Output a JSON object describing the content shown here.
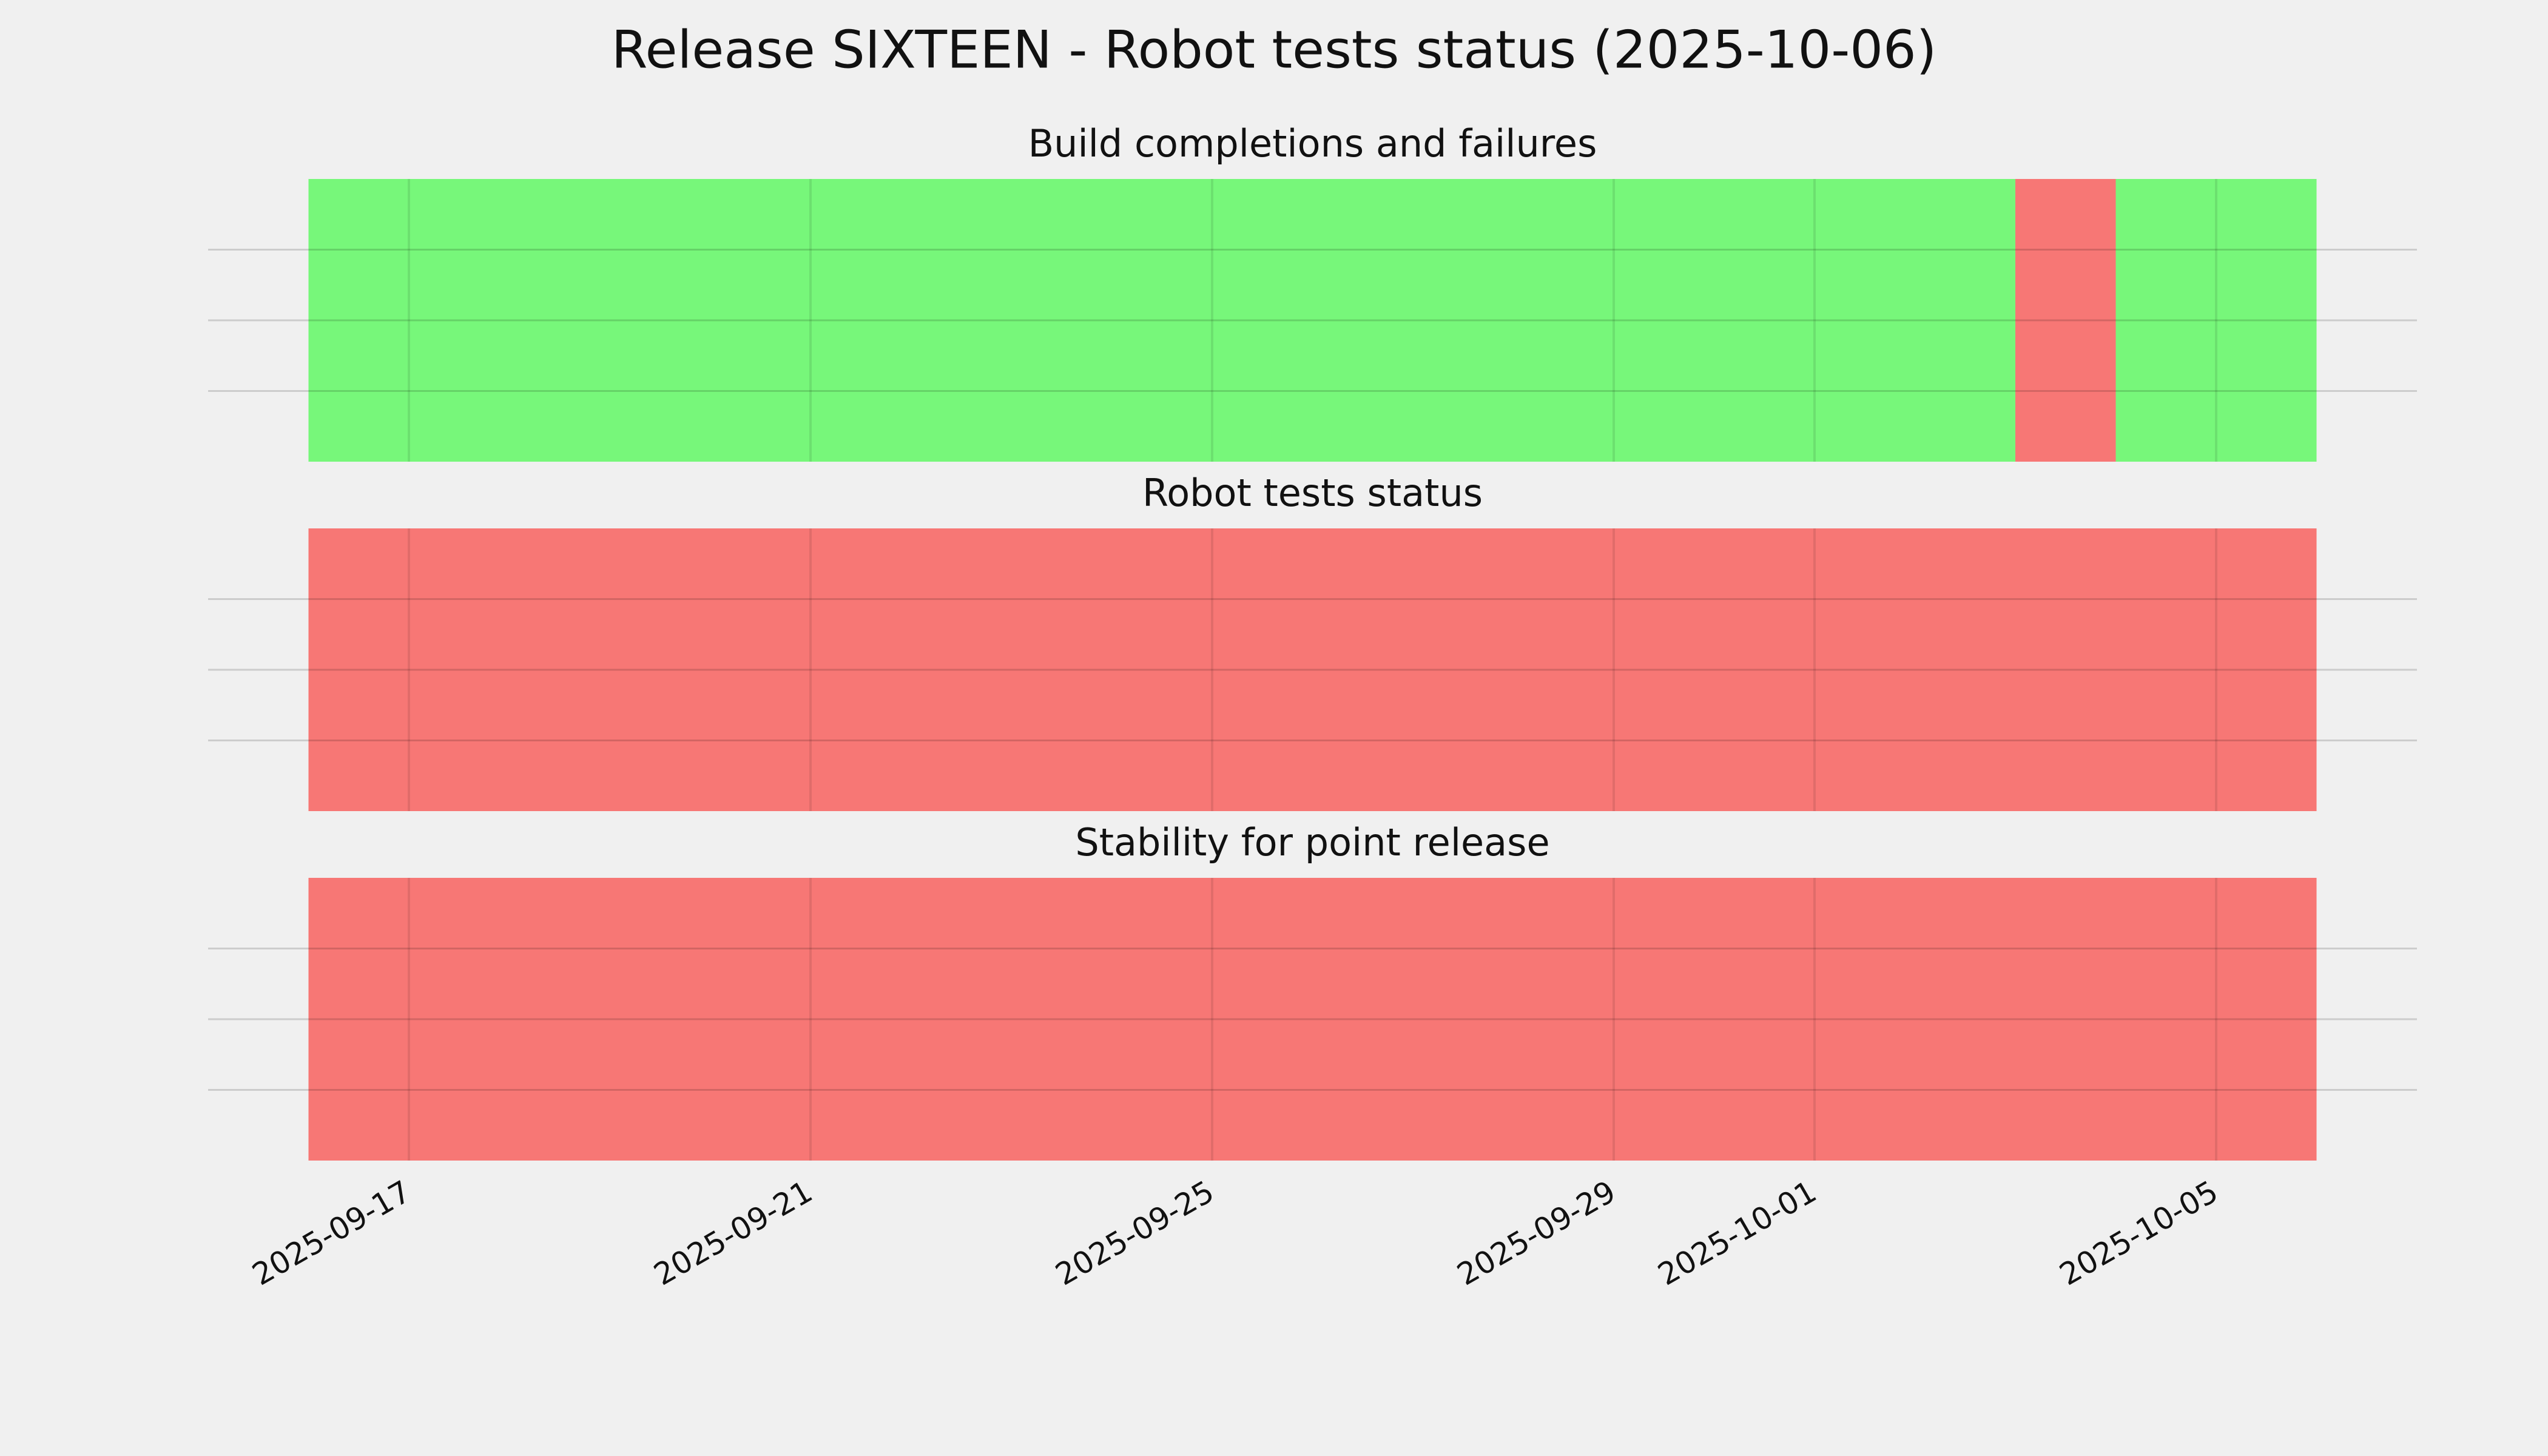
{
  "title": "Release SIXTEEN - Robot tests status (2025-10-06)",
  "chart_data": [
    {
      "type": "timeline",
      "title": "Build completions and failures",
      "xlim": [
        "2025-09-15",
        "2025-10-07"
      ],
      "xticks": [
        "2025-09-17",
        "2025-09-21",
        "2025-09-25",
        "2025-09-29",
        "2025-10-01",
        "2025-10-05"
      ],
      "ylim": [
        0,
        4
      ],
      "yticks": [
        1,
        2,
        3
      ],
      "grid": true,
      "spans": [
        {
          "start": "2025-09-16",
          "end": "2025-10-03",
          "color": "#77f77a"
        },
        {
          "start": "2025-10-03",
          "end": "2025-10-04",
          "color": "#f77775"
        },
        {
          "start": "2025-10-04",
          "end": "2025-10-06",
          "color": "#77f77a"
        }
      ]
    },
    {
      "type": "timeline",
      "title": "Robot tests status",
      "xlim": [
        "2025-09-15",
        "2025-10-07"
      ],
      "xticks": [
        "2025-09-17",
        "2025-09-21",
        "2025-09-25",
        "2025-09-29",
        "2025-10-01",
        "2025-10-05"
      ],
      "ylim": [
        0,
        4
      ],
      "yticks": [
        1,
        2,
        3
      ],
      "grid": true,
      "spans": [
        {
          "start": "2025-09-16",
          "end": "2025-10-06",
          "color": "#f77775"
        }
      ]
    },
    {
      "type": "timeline",
      "title": "Stability for point release",
      "xlim": [
        "2025-09-15",
        "2025-10-07"
      ],
      "xticks": [
        "2025-09-17",
        "2025-09-21",
        "2025-09-25",
        "2025-09-29",
        "2025-10-01",
        "2025-10-05"
      ],
      "ylim": [
        0,
        4
      ],
      "yticks": [
        1,
        2,
        3
      ],
      "grid": true,
      "spans": [
        {
          "start": "2025-09-16",
          "end": "2025-10-06",
          "color": "#f77775"
        }
      ]
    }
  ]
}
